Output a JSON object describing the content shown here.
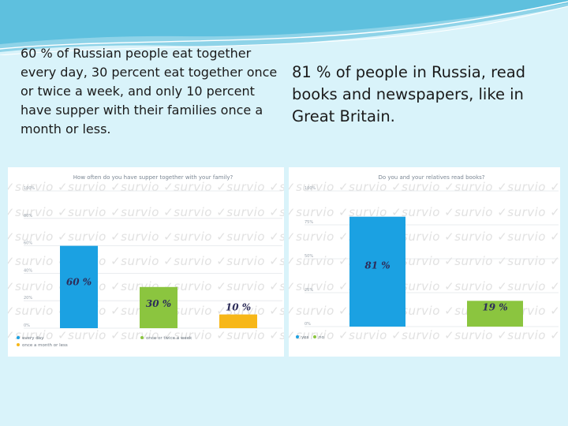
{
  "slide": {
    "left_text": "60 % of Russian people eat together every day, 30 percent eat together once or twice a week, and only 10 percent have supper with their families once a month or less.",
    "right_text": "81 % of people in Russia, read books and newspapers, like in Great Britain.",
    "watermark": "✓survio",
    "background_color": "#d9f3fa"
  },
  "chart_data": [
    {
      "type": "bar",
      "title": "How often do you have supper together with your family?",
      "categories": [
        "every day",
        "once or twice a week",
        "once a month or less"
      ],
      "values": [
        60,
        30,
        10
      ],
      "data_labels": [
        "60 %",
        "30 %",
        "10 %"
      ],
      "colors": [
        "#1ba1e2",
        "#8bc53f",
        "#f7b718"
      ],
      "ylim": [
        0,
        100
      ],
      "yticks": [
        0,
        20,
        40,
        60,
        80,
        100
      ],
      "ytick_labels": [
        "0%",
        "20%",
        "40%",
        "60%",
        "80%",
        "100%"
      ],
      "legend": [
        "every day",
        "once or twice a week",
        "once a month or less"
      ],
      "legend_position": "bottom-left",
      "grid": true
    },
    {
      "type": "bar",
      "title": "Do you and your relatives read books?",
      "categories": [
        "yes",
        "no"
      ],
      "values": [
        81,
        19
      ],
      "data_labels": [
        "81 %",
        "19 %"
      ],
      "colors": [
        "#1ba1e2",
        "#8bc53f"
      ],
      "ylim": [
        0,
        100
      ],
      "yticks": [
        0,
        25,
        50,
        75,
        100
      ],
      "ytick_labels": [
        "0%",
        "25%",
        "50%",
        "75%",
        "100%"
      ],
      "legend": [
        "yes",
        "no"
      ],
      "legend_position": "bottom-left",
      "grid": true
    }
  ]
}
